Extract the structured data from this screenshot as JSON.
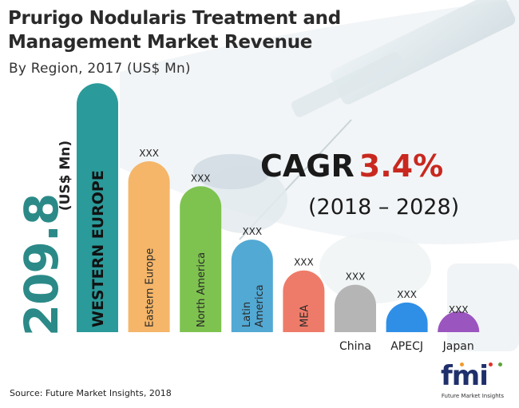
{
  "header": {
    "title": "Prurigo Nodularis Treatment and Management Market Revenue",
    "subtitle": "By Region, 2017 (US$ Mn)"
  },
  "highlight": {
    "value": "209.8",
    "unit": "(US$ Mn)"
  },
  "cagr": {
    "label": "CAGR",
    "value": "3.4%",
    "range": "(2018 – 2028)"
  },
  "source": "Source: Future Market Insights, 2018",
  "logo": {
    "mark": "fmi",
    "text": "Future Market Insights"
  },
  "colors": {
    "western_europe": "#2b9a9a",
    "eastern_europe": "#f5b669",
    "north_america": "#7ec34f",
    "latin_america": "#52a9d4",
    "mea": "#ee7b69",
    "china": "#b5b5b5",
    "apecj": "#2f8fe6",
    "japan": "#9b55bf",
    "cagr_value": "#c8281f"
  },
  "chart_data": {
    "type": "bar",
    "title": "Prurigo Nodularis Treatment and Management Market Revenue",
    "subtitle": "By Region, 2017 (US$ Mn)",
    "ylabel": "(US$ Mn)",
    "categories": [
      "WESTERN EUROPE",
      "Eastern Europe",
      "North America",
      "Latin America",
      "MEA",
      "China",
      "APECJ",
      "Japan"
    ],
    "values": [
      209.8,
      144,
      123,
      78,
      52,
      40,
      25,
      12
    ],
    "data_labels": [
      "209.8",
      "XXX",
      "XXX",
      "XXX",
      "XXX",
      "XXX",
      "XXX",
      "XXX"
    ],
    "label_placement": [
      "inside",
      "inside",
      "inside",
      "inside",
      "inside",
      "below",
      "below",
      "below"
    ],
    "ylim": [
      0,
      210
    ],
    "grid": false
  }
}
